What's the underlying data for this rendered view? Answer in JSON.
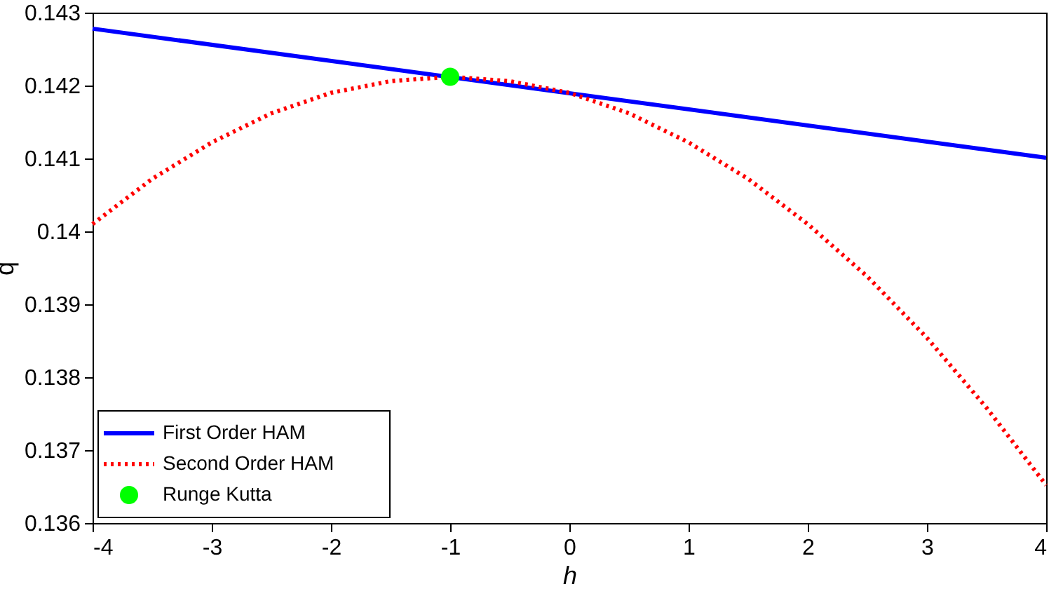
{
  "chart_data": {
    "type": "line",
    "xlabel": "h",
    "ylabel": "q",
    "xlim": [
      -4,
      4
    ],
    "xticks": [
      -4,
      -3,
      -2,
      -1,
      0,
      1,
      2,
      3,
      4
    ],
    "ylim": [
      0.136,
      0.143
    ],
    "yticks": [
      0.136,
      0.137,
      0.138,
      0.139,
      0.14,
      0.141,
      0.142,
      0.143
    ],
    "grid": false,
    "legend": "bottom left",
    "series": [
      {
        "name": "First Order HAM",
        "color": "#0000ff",
        "line_style": "solid",
        "x": [
          -4,
          4
        ],
        "values": [
          0.14278,
          0.14101
        ]
      },
      {
        "name": "Second Order HAM",
        "color": "#ff0000",
        "line_style": "dotted",
        "x": [
          -4,
          -3.5,
          -3,
          -2.5,
          -2,
          -1.5,
          -1,
          -0.5,
          0,
          0.5,
          1,
          1.5,
          2,
          2.5,
          3,
          3.5,
          4
        ],
        "values": [
          0.1401,
          0.14072,
          0.14122,
          0.14162,
          0.1419,
          0.14206,
          0.14212,
          0.14206,
          0.1419,
          0.14162,
          0.14122,
          0.14072,
          0.1401,
          0.13938,
          0.13854,
          0.13758,
          0.13652
        ]
      },
      {
        "name": "Runge Kutta",
        "type": "scatter",
        "marker": "circle",
        "color": "#00ff00",
        "x": [
          -1
        ],
        "values": [
          0.14212
        ]
      }
    ]
  }
}
